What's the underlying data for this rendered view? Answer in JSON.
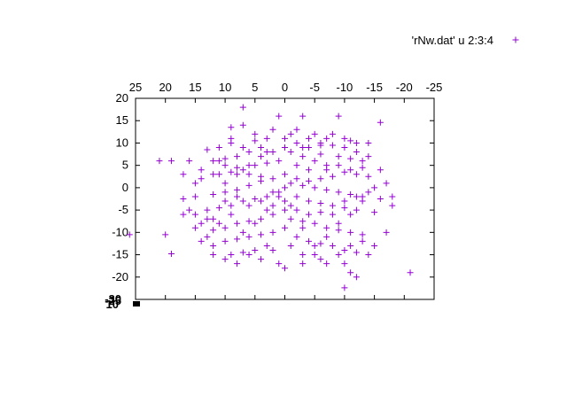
{
  "chart_data": {
    "type": "scatter",
    "title": "",
    "xlabel": "",
    "ylabel": "",
    "xlim": [
      25,
      -25
    ],
    "ylim": [
      -25,
      20
    ],
    "x_axis_position": "top",
    "x_ticks": [
      "25",
      "20",
      "15",
      "10",
      "5",
      "0",
      "-5",
      "-10",
      "-15",
      "-20",
      "-25"
    ],
    "y_ticks": [
      "20",
      "15",
      "10",
      "5",
      "0",
      "-5",
      "-10",
      "-15",
      "-20",
      "-25"
    ],
    "bottom_overlap_labels": [
      "-30",
      "-25",
      "10"
    ],
    "grid": false,
    "legend_position": "top-right",
    "marker": "plus",
    "color": "#9400d3",
    "series": [
      {
        "name": "'rNw.dat' u 2:3:4",
        "points": [
          [
            7,
            18
          ],
          [
            -3,
            16
          ],
          [
            -9,
            16
          ],
          [
            1,
            16
          ],
          [
            -16,
            14.6
          ],
          [
            -11,
            10.5
          ],
          [
            -14,
            10
          ],
          [
            -6,
            9.5
          ],
          [
            -4,
            9
          ],
          [
            -8,
            9.5
          ],
          [
            -10,
            9
          ],
          [
            -12,
            8
          ],
          [
            7,
            14
          ],
          [
            9,
            13.5
          ],
          [
            2,
            13
          ],
          [
            -1,
            12
          ],
          [
            -5,
            12
          ],
          [
            -7,
            11
          ],
          [
            3,
            11
          ],
          [
            5,
            10.5
          ],
          [
            9,
            10
          ],
          [
            11,
            9
          ],
          [
            13,
            8.5
          ],
          [
            -2,
            10
          ],
          [
            0,
            9
          ],
          [
            4,
            9
          ],
          [
            6,
            8
          ],
          [
            8,
            7
          ],
          [
            10,
            6.5
          ],
          [
            12,
            6
          ],
          [
            -3,
            7
          ],
          [
            -6,
            7.5
          ],
          [
            -9,
            7
          ],
          [
            -11,
            6.5
          ],
          [
            -13,
            6
          ],
          [
            1,
            6
          ],
          [
            3,
            5.5
          ],
          [
            5,
            5
          ],
          [
            7,
            4
          ],
          [
            9,
            3.5
          ],
          [
            11,
            3
          ],
          [
            14,
            2
          ],
          [
            16,
            6
          ],
          [
            19,
            6
          ],
          [
            -2,
            5
          ],
          [
            -4,
            4
          ],
          [
            -7,
            4
          ],
          [
            -10,
            3.5
          ],
          [
            -12,
            3
          ],
          [
            -14,
            2.5
          ],
          [
            0,
            3
          ],
          [
            2,
            2
          ],
          [
            4,
            1.5
          ],
          [
            6,
            0.5
          ],
          [
            8,
            -0.5
          ],
          [
            10,
            -1
          ],
          [
            12,
            -1.5
          ],
          [
            15,
            -2
          ],
          [
            17,
            -2.5
          ],
          [
            -1,
            1
          ],
          [
            -3,
            0.5
          ],
          [
            -5,
            0
          ],
          [
            -7,
            -0.5
          ],
          [
            -9,
            -1
          ],
          [
            -11,
            -1.5
          ],
          [
            -13,
            -2
          ],
          [
            -16,
            -2.5
          ],
          [
            -18,
            -4
          ],
          [
            1,
            -1
          ],
          [
            3,
            -2
          ],
          [
            5,
            -2.5
          ],
          [
            7,
            -3
          ],
          [
            9,
            -4
          ],
          [
            11,
            -4.5
          ],
          [
            13,
            -5
          ],
          [
            15,
            -6
          ],
          [
            -2,
            -2
          ],
          [
            -4,
            -3
          ],
          [
            -6,
            -3.5
          ],
          [
            -8,
            -4
          ],
          [
            -10,
            -4.5
          ],
          [
            -12,
            -5
          ],
          [
            -15,
            -5.5
          ],
          [
            0,
            -5
          ],
          [
            2,
            -6
          ],
          [
            4,
            -7
          ],
          [
            6,
            -7.5
          ],
          [
            8,
            -8
          ],
          [
            10,
            -9
          ],
          [
            12,
            -9.5
          ],
          [
            -1,
            -7
          ],
          [
            -3,
            -7.5
          ],
          [
            -5,
            -8
          ],
          [
            -7,
            -9
          ],
          [
            -9,
            -9.5
          ],
          [
            -11,
            -10
          ],
          [
            -13,
            -10.5
          ],
          [
            0,
            -9
          ],
          [
            2,
            -10
          ],
          [
            4,
            -10.5
          ],
          [
            6,
            -11
          ],
          [
            8,
            -11.5
          ],
          [
            10,
            -12
          ],
          [
            12,
            -13
          ],
          [
            -2,
            -11
          ],
          [
            -4,
            -12
          ],
          [
            -6,
            -12.5
          ],
          [
            -8,
            -13
          ],
          [
            -10,
            -14
          ],
          [
            -12,
            -14.5
          ],
          [
            -14,
            -15
          ],
          [
            3,
            -13
          ],
          [
            5,
            -14
          ],
          [
            7,
            -14.5
          ],
          [
            9,
            -15
          ],
          [
            -3,
            -15
          ],
          [
            -6,
            -16
          ],
          [
            -10,
            -17
          ],
          [
            1,
            -17
          ],
          [
            0,
            -18
          ],
          [
            -11,
            -19
          ],
          [
            -12,
            -20
          ],
          [
            -21,
            -19
          ],
          [
            -10,
            -22.4
          ],
          [
            26,
            -10.5
          ],
          [
            20,
            -10.5
          ],
          [
            19,
            -14.8
          ],
          [
            21,
            6
          ],
          [
            17,
            3
          ],
          [
            15,
            1
          ],
          [
            14,
            4
          ],
          [
            13,
            -7
          ],
          [
            12,
            3
          ],
          [
            11,
            6
          ],
          [
            10,
            1
          ],
          [
            8,
            3
          ],
          [
            6,
            5
          ],
          [
            4,
            7
          ],
          [
            2,
            8
          ],
          [
            0,
            11
          ],
          [
            -2,
            13
          ],
          [
            -4,
            11
          ],
          [
            -6,
            10
          ],
          [
            -8,
            12
          ],
          [
            -10,
            11
          ],
          [
            -12,
            10
          ],
          [
            -14,
            7
          ],
          [
            -16,
            4
          ],
          [
            -15,
            0
          ],
          [
            -13,
            -3
          ],
          [
            -11,
            -6
          ],
          [
            -9,
            -8
          ],
          [
            -7,
            -11
          ],
          [
            -5,
            -13
          ],
          [
            -3,
            -9
          ],
          [
            -1,
            -4
          ],
          [
            1,
            -2
          ],
          [
            3,
            -5
          ],
          [
            5,
            -8
          ],
          [
            7,
            -10
          ],
          [
            9,
            -6
          ],
          [
            11,
            -8
          ],
          [
            13,
            -11
          ],
          [
            15,
            -9
          ],
          [
            17,
            -6
          ],
          [
            14,
            -12
          ],
          [
            12,
            -15
          ],
          [
            10,
            -16
          ],
          [
            8,
            -17
          ],
          [
            6,
            -15
          ],
          [
            4,
            -16
          ],
          [
            2,
            -14
          ],
          [
            -1,
            -13
          ],
          [
            -3,
            -17
          ],
          [
            -5,
            -15
          ],
          [
            -7,
            -17
          ],
          [
            -9,
            -15
          ],
          [
            -11,
            -13
          ],
          [
            -13,
            -12
          ],
          [
            -15,
            -13
          ],
          [
            -17,
            -10
          ],
          [
            -18,
            -2
          ],
          [
            -17,
            1
          ],
          [
            -6,
            2
          ],
          [
            -8,
            2.5
          ],
          [
            -4,
            1.5
          ],
          [
            -2,
            2
          ],
          [
            0,
            0
          ],
          [
            2,
            -1
          ],
          [
            4,
            2.5
          ],
          [
            6,
            3
          ],
          [
            8,
            4.5
          ],
          [
            10,
            5
          ],
          [
            3,
            8
          ],
          [
            5,
            12
          ],
          [
            7,
            9
          ],
          [
            9,
            11
          ],
          [
            -1,
            8
          ],
          [
            -3,
            9
          ],
          [
            -5,
            6
          ],
          [
            -7,
            5
          ],
          [
            -9,
            5
          ],
          [
            -11,
            4
          ],
          [
            -13,
            4.5
          ],
          [
            -14,
            -1
          ],
          [
            -12,
            -2
          ],
          [
            -10,
            -3
          ],
          [
            -8,
            -6
          ],
          [
            -6,
            -5.5
          ],
          [
            -4,
            -6
          ],
          [
            -2,
            -5
          ],
          [
            0,
            -3
          ],
          [
            2,
            -4
          ],
          [
            4,
            -3
          ],
          [
            6,
            -4
          ],
          [
            8,
            -2
          ],
          [
            10,
            -3
          ],
          [
            12,
            -7
          ],
          [
            14,
            -8
          ],
          [
            16,
            -5
          ]
        ]
      }
    ]
  }
}
